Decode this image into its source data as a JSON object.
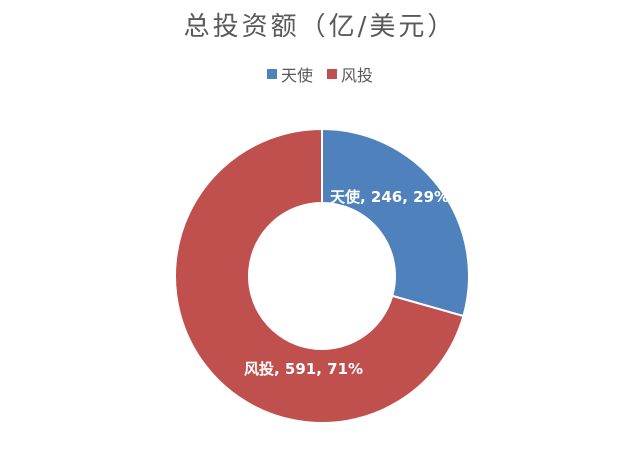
{
  "chart_data": {
    "type": "pie",
    "subtype": "donut",
    "title": "总投资额（亿/美元）",
    "legend_position": "top",
    "categories": [
      "天使",
      "风投"
    ],
    "values": [
      246,
      591
    ],
    "percent_labels": [
      "29%",
      "71%"
    ],
    "data_labels": [
      "天使, 246, 29%",
      "风投, 591, 71%"
    ],
    "colors": [
      "#4F81BD",
      "#C0504D"
    ],
    "stroke_color": "#ffffff"
  }
}
